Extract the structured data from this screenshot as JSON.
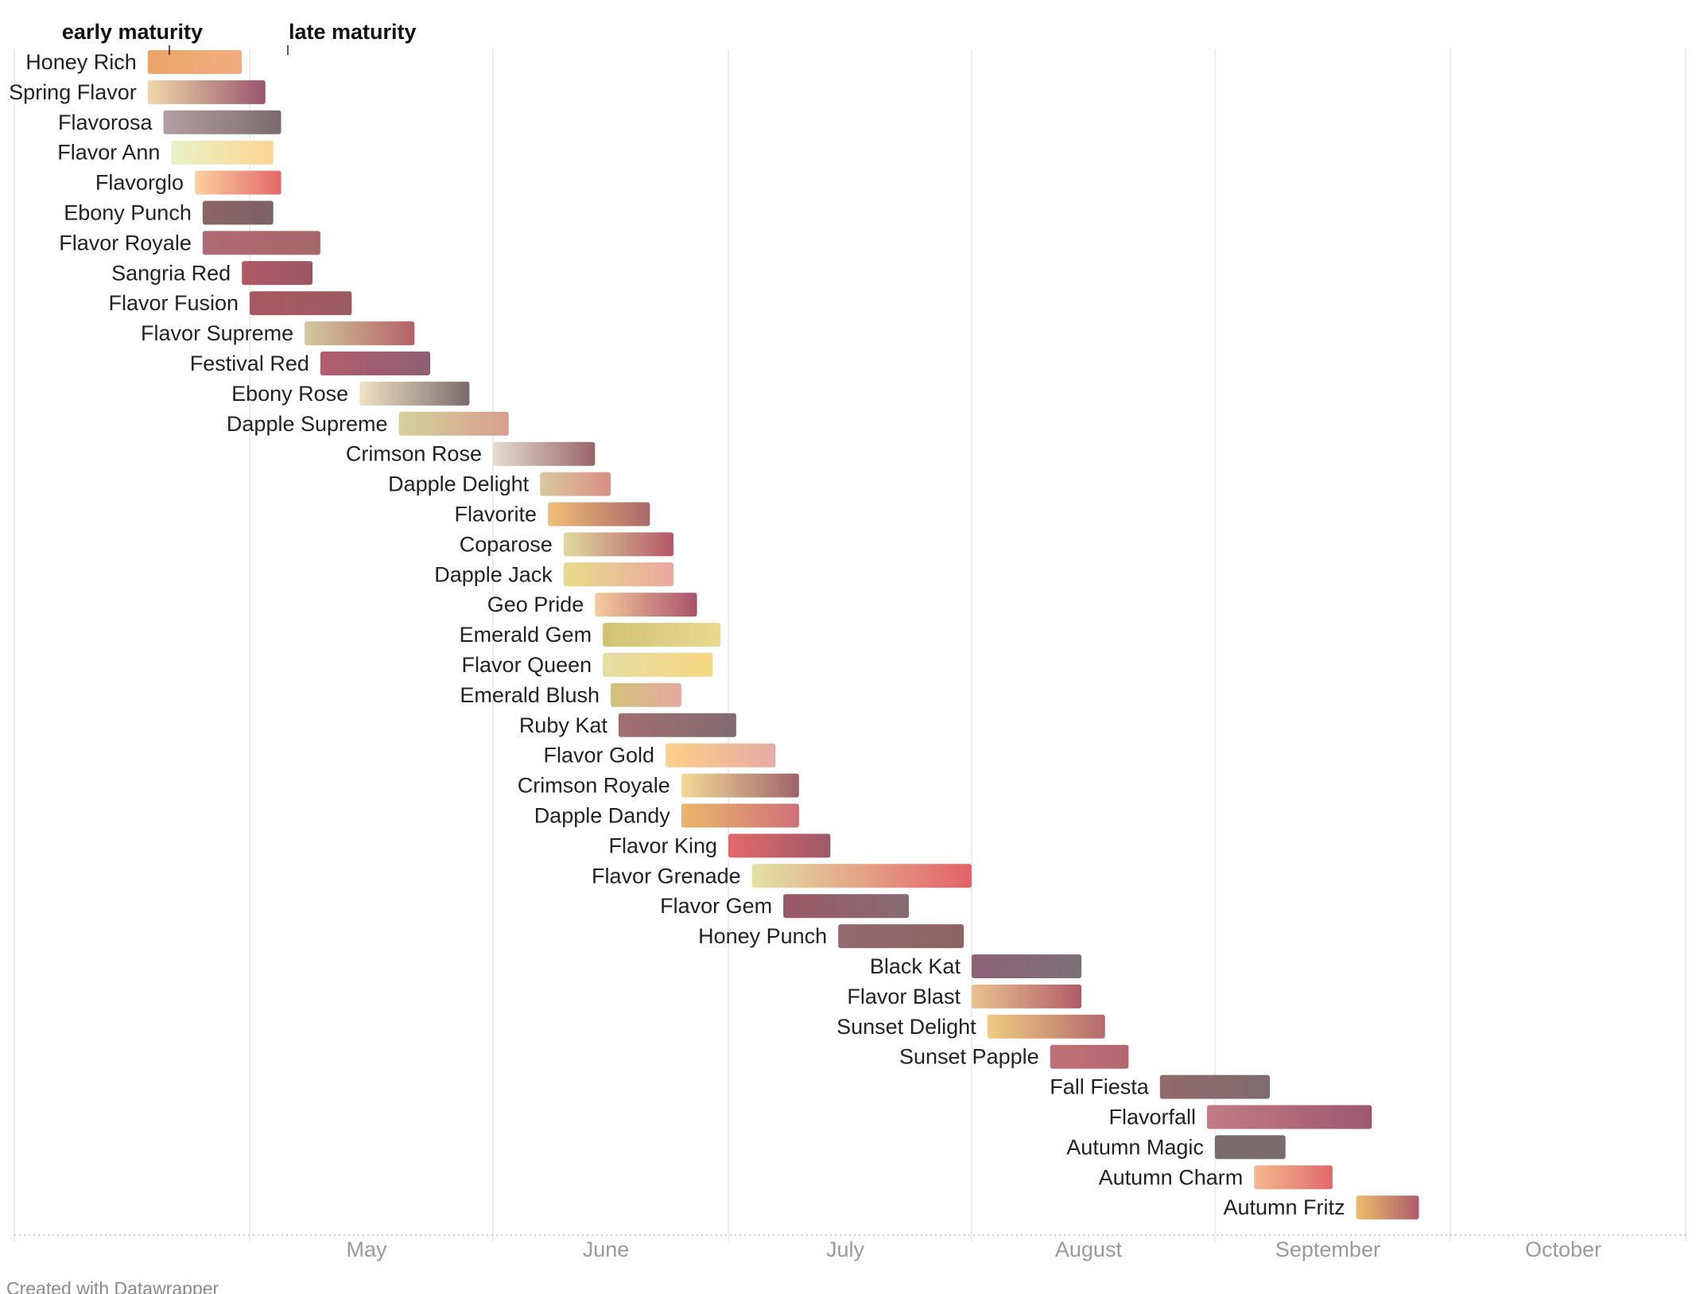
{
  "chart_data": {
    "type": "range-bar",
    "x_unit": "date",
    "year": 2024,
    "xlim": [
      "2024-04-01",
      "2024-10-31"
    ],
    "x_ticks": [
      {
        "label": "May",
        "date": "2024-05-01"
      },
      {
        "label": "June",
        "date": "2024-06-01"
      },
      {
        "label": "July",
        "date": "2024-07-01"
      },
      {
        "label": "August",
        "date": "2024-08-01"
      },
      {
        "label": "September",
        "date": "2024-09-01"
      },
      {
        "label": "October",
        "date": "2024-10-01"
      }
    ],
    "grid": true,
    "legend": {
      "start_label": "early maturity",
      "end_label": "late maturity"
    },
    "varieties": [
      {
        "name": "Honey Rich",
        "start": "2024-04-18",
        "end": "2024-04-30",
        "colors": [
          "#eba568",
          "#f1ad80"
        ]
      },
      {
        "name": "Spring Flavor",
        "start": "2024-04-18",
        "end": "2024-05-03",
        "colors": [
          "#efd8a8",
          "#9a5570"
        ]
      },
      {
        "name": "Flavorosa",
        "start": "2024-04-20",
        "end": "2024-05-05",
        "colors": [
          "#b49fa2",
          "#7b6b6d"
        ]
      },
      {
        "name": "Flavor Ann",
        "start": "2024-04-21",
        "end": "2024-05-04",
        "colors": [
          "#e9f2c6",
          "#fcd592"
        ]
      },
      {
        "name": "Flavorglo",
        "start": "2024-04-24",
        "end": "2024-05-05",
        "colors": [
          "#fcd09d",
          "#e4686a"
        ]
      },
      {
        "name": "Ebony Punch",
        "start": "2024-04-25",
        "end": "2024-05-04",
        "colors": [
          "#8c6466",
          "#7c6266"
        ]
      },
      {
        "name": "Flavor Royale",
        "start": "2024-04-25",
        "end": "2024-05-10",
        "colors": [
          "#af6b73",
          "#a8686b"
        ]
      },
      {
        "name": "Sangria Red",
        "start": "2024-04-30",
        "end": "2024-05-09",
        "colors": [
          "#b05867",
          "#9a5863"
        ]
      },
      {
        "name": "Flavor Fusion",
        "start": "2024-05-01",
        "end": "2024-05-14",
        "colors": [
          "#a85860",
          "#9c5c62"
        ]
      },
      {
        "name": "Flavor Supreme",
        "start": "2024-05-08",
        "end": "2024-05-22",
        "colors": [
          "#d1c99e",
          "#b56066"
        ]
      },
      {
        "name": "Festival Red",
        "start": "2024-05-10",
        "end": "2024-05-24",
        "colors": [
          "#b45d70",
          "#8c6072"
        ]
      },
      {
        "name": "Ebony Rose",
        "start": "2024-05-15",
        "end": "2024-05-29",
        "colors": [
          "#efe2c4",
          "#7b6b6d"
        ]
      },
      {
        "name": "Dapple Supreme",
        "start": "2024-05-20",
        "end": "2024-06-03",
        "colors": [
          "#d3d19b",
          "#d89e8f"
        ]
      },
      {
        "name": "Crimson Rose",
        "start": "2024-06-01",
        "end": "2024-06-14",
        "colors": [
          "#e4ddcf",
          "#9a6469"
        ]
      },
      {
        "name": "Dapple Delight",
        "start": "2024-06-07",
        "end": "2024-06-16",
        "colors": [
          "#d9c99c",
          "#d98e86"
        ]
      },
      {
        "name": "Flavorite",
        "start": "2024-06-08",
        "end": "2024-06-21",
        "colors": [
          "#f0bf77",
          "#a96769"
        ]
      },
      {
        "name": "Coparose",
        "start": "2024-06-10",
        "end": "2024-06-24",
        "colors": [
          "#dfdb9d",
          "#b5566a"
        ]
      },
      {
        "name": "Dapple Jack",
        "start": "2024-06-10",
        "end": "2024-06-24",
        "colors": [
          "#e9dc8a",
          "#eba7a0"
        ]
      },
      {
        "name": "Geo Pride",
        "start": "2024-06-14",
        "end": "2024-06-27",
        "colors": [
          "#f5cc9c",
          "#a8526a"
        ]
      },
      {
        "name": "Emerald Gem",
        "start": "2024-06-15",
        "end": "2024-06-30",
        "colors": [
          "#cfc372",
          "#ead98f"
        ]
      },
      {
        "name": "Flavor Queen",
        "start": "2024-06-15",
        "end": "2024-06-29",
        "colors": [
          "#e5dea5",
          "#f7d77f"
        ]
      },
      {
        "name": "Emerald Blush",
        "start": "2024-06-16",
        "end": "2024-06-25",
        "colors": [
          "#d2c37b",
          "#e6a9a0"
        ]
      },
      {
        "name": "Ruby Kat",
        "start": "2024-06-17",
        "end": "2024-07-02",
        "colors": [
          "#a36f72",
          "#806b70"
        ]
      },
      {
        "name": "Flavor Gold",
        "start": "2024-06-23",
        "end": "2024-07-07",
        "colors": [
          "#fdcf88",
          "#e5aba6"
        ]
      },
      {
        "name": "Crimson Royale",
        "start": "2024-06-25",
        "end": "2024-07-10",
        "colors": [
          "#f4d998",
          "#9e6469"
        ]
      },
      {
        "name": "Dapple Dandy",
        "start": "2024-06-25",
        "end": "2024-07-10",
        "colors": [
          "#eab66a",
          "#d0707a"
        ]
      },
      {
        "name": "Flavor King",
        "start": "2024-07-01",
        "end": "2024-07-14",
        "colors": [
          "#e46a6b",
          "#9d5868"
        ]
      },
      {
        "name": "Flavor Grenade",
        "start": "2024-07-04",
        "end": "2024-08-01",
        "colors": [
          "#e3e2a5",
          "#e36268"
        ]
      },
      {
        "name": "Flavor Gem",
        "start": "2024-07-08",
        "end": "2024-07-24",
        "colors": [
          "#9a5868",
          "#866c72"
        ]
      },
      {
        "name": "Honey Punch",
        "start": "2024-07-15",
        "end": "2024-07-31",
        "colors": [
          "#946a6c",
          "#8c6464"
        ]
      },
      {
        "name": "Black Kat",
        "start": "2024-08-01",
        "end": "2024-08-15",
        "colors": [
          "#8c6276",
          "#7b7077"
        ]
      },
      {
        "name": "Flavor Blast",
        "start": "2024-08-01",
        "end": "2024-08-15",
        "colors": [
          "#eac28f",
          "#b05c6a"
        ]
      },
      {
        "name": "Sunset Delight",
        "start": "2024-08-03",
        "end": "2024-08-18",
        "colors": [
          "#f0cb82",
          "#b46a6d"
        ]
      },
      {
        "name": "Sunset Papple",
        "start": "2024-08-11",
        "end": "2024-08-21",
        "colors": [
          "#c0727a",
          "#b2666f"
        ]
      },
      {
        "name": "Fall Fiesta",
        "start": "2024-08-25",
        "end": "2024-09-08",
        "colors": [
          "#926a6c",
          "#7e6b6f"
        ]
      },
      {
        "name": "Flavorfall",
        "start": "2024-08-31",
        "end": "2024-09-21",
        "colors": [
          "#c27c85",
          "#9c5870"
        ]
      },
      {
        "name": "Autumn Magic",
        "start": "2024-09-01",
        "end": "2024-09-10",
        "colors": [
          "#7b6b6d",
          "#7b6b6d"
        ]
      },
      {
        "name": "Autumn Charm",
        "start": "2024-09-06",
        "end": "2024-09-16",
        "colors": [
          "#f6b78e",
          "#e06a6b"
        ]
      },
      {
        "name": "Autumn Fritz",
        "start": "2024-09-19",
        "end": "2024-09-27",
        "colors": [
          "#edbc6b",
          "#ad5c6c"
        ]
      }
    ]
  },
  "footer": {
    "credit": "Created with Datawrapper"
  },
  "colors": {
    "grid": "#e6e6e6",
    "axis_dots": "#cfcfcf",
    "tick_text": "#9a9a9a",
    "label_text": "#222222"
  }
}
